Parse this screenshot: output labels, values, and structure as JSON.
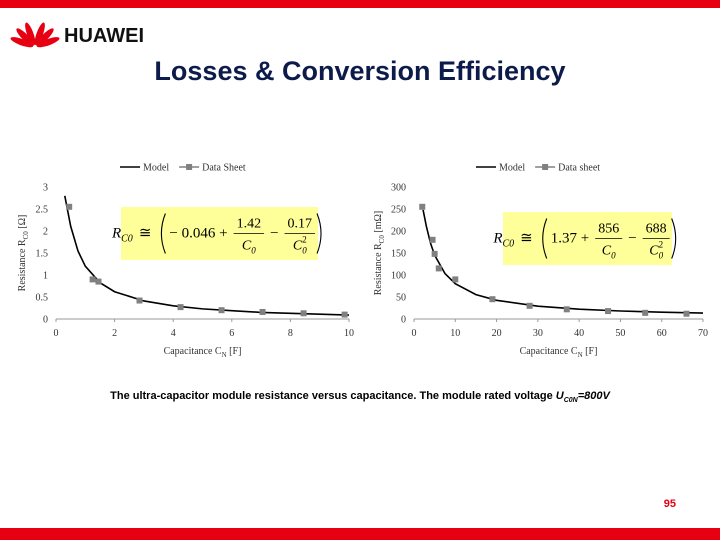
{
  "header": {
    "logo_text": "HUAWEI",
    "title": "Losses & Conversion Efficiency"
  },
  "chart_data": [
    {
      "type": "line",
      "xlabel": "Capacitance C",
      "xlabel_sub": "N",
      "xlabel_unit": " [F]",
      "ylabel": "Resistance R",
      "ylabel_sub": "C0",
      "ylabel_unit": " [Ω]",
      "xlim": [
        0,
        10
      ],
      "xticks": [
        0,
        2,
        4,
        6,
        8,
        10
      ],
      "ylim": [
        0,
        3
      ],
      "yticks": [
        0,
        0.5,
        1,
        1.5,
        2,
        2.5,
        3
      ],
      "grid": false,
      "series": [
        {
          "name": "Model",
          "color": "#000000",
          "mode": "line",
          "x": [
            0.3,
            0.5,
            0.75,
            1,
            1.5,
            2,
            3,
            4,
            5,
            6,
            7,
            8,
            9,
            10
          ],
          "values": [
            2.8,
            2.11,
            1.545,
            1.2,
            0.825,
            0.62,
            0.41,
            0.3,
            0.23,
            0.19,
            0.15,
            0.13,
            0.11,
            0.09
          ]
        },
        {
          "name": "Data Sheet",
          "color": "#808080",
          "mode": "markers",
          "x": [
            0.45,
            1.25,
            1.45,
            2.85,
            4.25,
            5.65,
            7.05,
            8.45,
            9.85
          ],
          "values": [
            2.55,
            0.9,
            0.85,
            0.42,
            0.27,
            0.2,
            0.16,
            0.13,
            0.1
          ]
        }
      ],
      "formula": {
        "lhs": "R",
        "lhs_sub": "C0",
        "rel": "≅",
        "const": "− 0.046 +",
        "num1": "1.42",
        "den1": "C",
        "den1_sub": "0",
        "op": "−",
        "num2": "0.17",
        "den2": "C",
        "den2_sub": "0",
        "den2_sup": "2"
      }
    },
    {
      "type": "line",
      "xlabel": "Capacitance C",
      "xlabel_sub": "N",
      "xlabel_unit": " [F]",
      "ylabel": "Resistance R",
      "ylabel_sub": "C0",
      "ylabel_unit": " [mΩ]",
      "xlim": [
        0,
        70
      ],
      "xticks": [
        0,
        10,
        20,
        30,
        40,
        50,
        60,
        70
      ],
      "ylim": [
        0,
        300
      ],
      "yticks": [
        0,
        50,
        100,
        150,
        200,
        250,
        300
      ],
      "grid": false,
      "series": [
        {
          "name": "Model",
          "color": "#000000",
          "mode": "line",
          "x": [
            2.2,
            2.5,
            3,
            4,
            5,
            7.5,
            10,
            15,
            20,
            30,
            40,
            50,
            60,
            70
          ],
          "values": [
            248,
            234,
            210.3,
            172.4,
            145,
            103.3,
            80.1,
            55.4,
            42.5,
            29.1,
            22.3,
            18.2,
            15.5,
            13.4
          ]
        },
        {
          "name": "Data sheet",
          "color": "#808080",
          "mode": "markers",
          "x": [
            2,
            4.5,
            5,
            6,
            10,
            19,
            28,
            37,
            47,
            56,
            66
          ],
          "values": [
            255,
            180,
            148,
            115,
            90,
            45,
            30,
            22,
            18,
            14,
            12
          ]
        }
      ],
      "formula": {
        "lhs": "R",
        "lhs_sub": "C0",
        "rel": "≅",
        "const": "1.37 +",
        "num1": "856",
        "den1": "C",
        "den1_sub": "0",
        "op": "−",
        "num2": "688",
        "den2": "C",
        "den2_sub": "0",
        "den2_sup": "2"
      }
    }
  ],
  "caption": {
    "text": "The ultra-capacitor module resistance versus capacitance. The module rated voltage ",
    "symbol": "U",
    "symbol_sub": "C0N",
    "suffix": "=800V"
  },
  "footer": {
    "page_number": "95"
  }
}
